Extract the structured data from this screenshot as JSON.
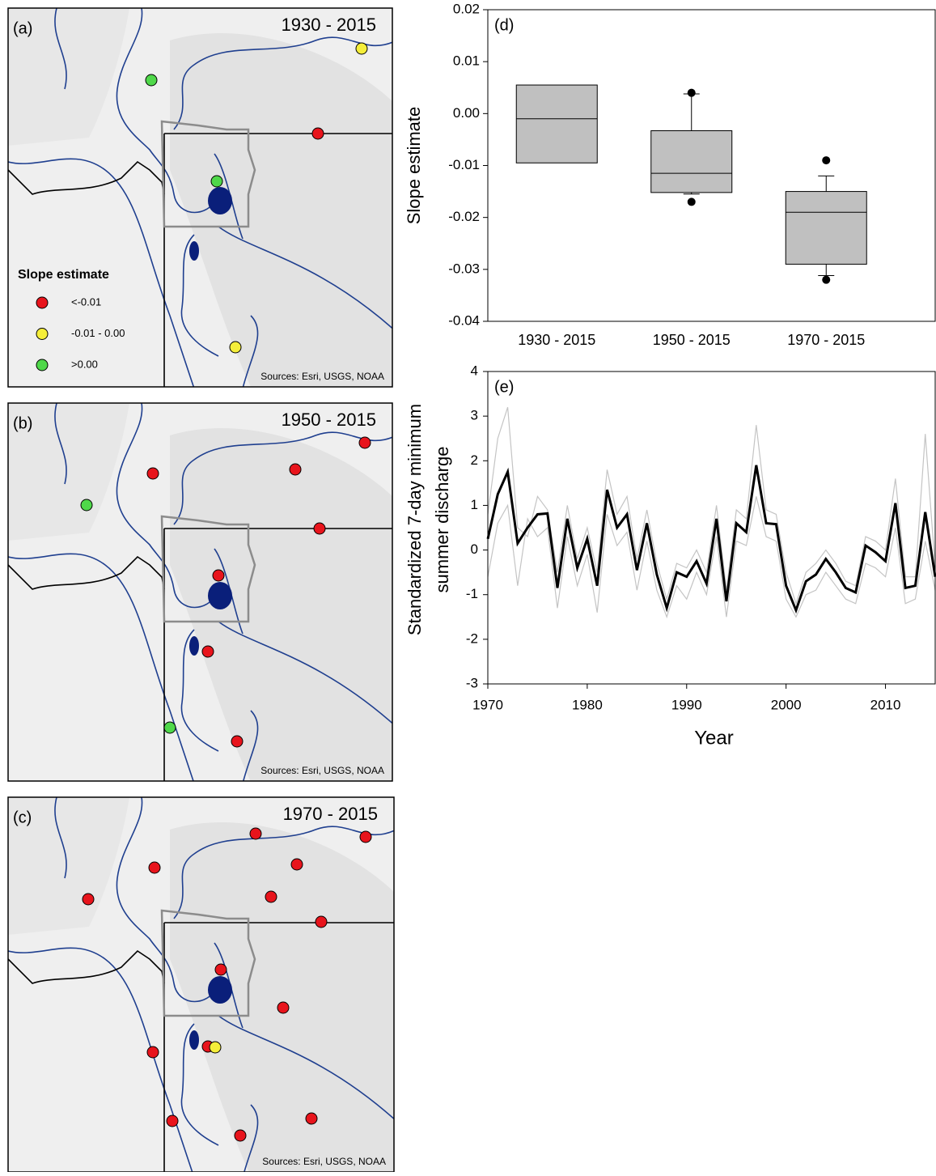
{
  "map_panels": [
    {
      "label": "(a)",
      "period": "1930 - 2015",
      "sources": "Sources: Esri, USGS, NOAA"
    },
    {
      "label": "(b)",
      "period": "1950 - 2015",
      "sources": "Sources: Esri, USGS, NOAA"
    },
    {
      "label": "(c)",
      "period": "1970 - 2015",
      "sources": "Sources: Esri, USGS, NOAA"
    }
  ],
  "map_legend": {
    "title": "Slope estimate",
    "items": [
      {
        "label": "<-0.01",
        "color": "#e8141c"
      },
      {
        "label": "-0.01 - 0.00",
        "color": "#f5ee3a"
      },
      {
        "label": ">0.00",
        "color": "#4fd84a"
      }
    ]
  },
  "chart_data": [
    {
      "type": "box",
      "panel_label": "(d)",
      "ylabel": "Slope estimate",
      "color": "#c0c0c0",
      "categories": [
        "1930 - 2015",
        "1950 - 2015",
        "1970 - 2015"
      ],
      "boxes": [
        {
          "q1": -0.0095,
          "median": -0.001,
          "q3": 0.0055
        },
        {
          "whisker_low": -0.0155,
          "q1": -0.0152,
          "median": -0.0115,
          "q3": -0.0033,
          "whisker_high": 0.0038,
          "outliers": [
            -0.017,
            0.004
          ]
        },
        {
          "whisker_low": -0.0312,
          "q1": -0.029,
          "median": -0.019,
          "q3": -0.015,
          "whisker_high": -0.012,
          "outliers": [
            -0.032,
            -0.009
          ]
        }
      ],
      "ylim": [
        -0.04,
        0.02
      ],
      "yticks": [
        -0.04,
        -0.03,
        -0.02,
        -0.01,
        {
          "value": 0,
          "label": "0.00"
        },
        0.01,
        0.02
      ]
    },
    {
      "type": "line",
      "panel_label": "(e)",
      "xlabel": "Year",
      "ylabel": [
        "Standardized 7-day minimum",
        "summer discharge"
      ],
      "x": [
        1970,
        1971,
        1972,
        1973,
        1974,
        1975,
        1976,
        1977,
        1978,
        1979,
        1980,
        1981,
        1982,
        1983,
        1984,
        1985,
        1986,
        1987,
        1988,
        1989,
        1990,
        1991,
        1992,
        1993,
        1994,
        1995,
        1996,
        1997,
        1998,
        1999,
        2000,
        2001,
        2002,
        2003,
        2004,
        2005,
        2006,
        2007,
        2008,
        2009,
        2010,
        2011,
        2012,
        2013,
        2014,
        2015
      ],
      "series": [
        {
          "color": "#c4c4c4",
          "values": [
            0.8,
            2.5,
            3.2,
            0.5,
            0.3,
            1.2,
            0.9,
            -0.5,
            1.0,
            -0.2,
            0.5,
            -0.5,
            1.8,
            0.8,
            1.2,
            -0.2,
            0.9,
            -0.3,
            -1.1,
            -0.3,
            -0.4,
            0.0,
            -0.5,
            1.0,
            -0.9,
            0.9,
            0.7,
            2.8,
            0.9,
            0.8,
            -0.5,
            -1.2,
            -0.5,
            -0.3,
            0.0,
            -0.3,
            -0.7,
            -0.8,
            0.3,
            0.2,
            0.0,
            1.6,
            -0.6,
            -0.6,
            2.6,
            -0.4
          ]
        },
        {
          "color": "#c4c4c4",
          "values": [
            -0.6,
            0.6,
            1.0,
            -0.8,
            0.7,
            0.3,
            0.5,
            -1.3,
            0.3,
            -0.8,
            -0.1,
            -1.4,
            0.8,
            0.1,
            0.4,
            -0.9,
            0.2,
            -0.9,
            -1.5,
            -0.8,
            -1.1,
            -0.5,
            -1.0,
            0.3,
            -1.5,
            0.2,
            0.1,
            1.2,
            0.3,
            0.2,
            -1.1,
            -1.5,
            -1.0,
            -0.9,
            -0.5,
            -0.8,
            -1.1,
            -1.2,
            -0.3,
            -0.4,
            -0.6,
            0.5,
            -1.2,
            -1.1,
            0.2,
            -0.9
          ]
        },
        {
          "color": "#000000",
          "values": [
            0.25,
            1.25,
            1.75,
            0.15,
            0.5,
            0.8,
            0.82,
            -0.85,
            0.7,
            -0.4,
            0.25,
            -0.8,
            1.35,
            0.5,
            0.8,
            -0.45,
            0.6,
            -0.55,
            -1.3,
            -0.5,
            -0.6,
            -0.25,
            -0.75,
            0.7,
            -1.15,
            0.6,
            0.4,
            1.9,
            0.6,
            0.58,
            -0.8,
            -1.35,
            -0.7,
            -0.55,
            -0.2,
            -0.5,
            -0.85,
            -0.95,
            0.1,
            -0.05,
            -0.25,
            1.05,
            -0.85,
            -0.8,
            0.85,
            -0.6
          ]
        }
      ],
      "xlim": [
        1970,
        2015
      ],
      "xticks": [
        1970,
        1980,
        1990,
        2000,
        2010
      ],
      "ylim": [
        -3,
        4
      ],
      "yticks": [
        -3,
        -2,
        -1,
        0,
        1,
        2,
        3,
        4
      ]
    }
  ]
}
